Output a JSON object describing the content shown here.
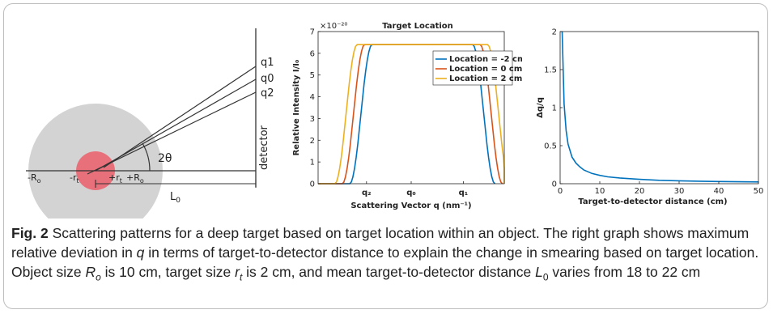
{
  "diagram": {
    "labels": {
      "q1": "q1",
      "q0": "q0",
      "q2": "q2",
      "angle": "2θ",
      "detector": "detector",
      "neg_R": "-R",
      "neg_R_sub": "o",
      "neg_r": "-r",
      "neg_r_sub": "t",
      "pos_r": "+r",
      "pos_r_sub": "t",
      "pos_R": "+R",
      "pos_R_sub": "o",
      "L": "L",
      "L_sub": "0"
    },
    "colors": {
      "object": "#d3d3d3",
      "target": "#e8707a"
    }
  },
  "chart_data": [
    {
      "type": "line",
      "title": "Target Location",
      "xlabel": "Scattering Vector q (nm⁻¹)",
      "ylabel": "Relative Intensity I/I₀",
      "y_multiplier": "×10⁻²⁰",
      "x_tick_labels": [
        "q₂",
        "q₀",
        "q₁"
      ],
      "y_ticks": [
        0,
        1,
        2,
        3,
        4,
        5,
        6,
        7
      ],
      "ylim": [
        0,
        7
      ],
      "xlim": [
        0,
        10
      ],
      "legend_position": "top-right",
      "grid": false,
      "series": [
        {
          "name": "Location = -2 cm",
          "color": "#0072bd",
          "rise": [
            1.7,
            2.9
          ],
          "fall": [
            8.3,
            9.5
          ],
          "plateau": 6.4
        },
        {
          "name": "Location = 0 cm",
          "color": "#d95319",
          "rise": [
            1.3,
            2.5
          ],
          "fall": [
            8.7,
            9.9
          ],
          "plateau": 6.4
        },
        {
          "name": "Location = 2 cm",
          "color": "#edb120",
          "rise": [
            0.9,
            2.1
          ],
          "fall": [
            9.1,
            10.3
          ],
          "plateau": 6.4
        }
      ]
    },
    {
      "type": "line",
      "title": "",
      "xlabel": "Target-to-detector distance (cm)",
      "ylabel": "Δq/q",
      "xlim": [
        0,
        50
      ],
      "ylim": [
        0,
        2
      ],
      "x_ticks": [
        0,
        10,
        20,
        30,
        40,
        50
      ],
      "y_ticks": [
        0,
        0.5,
        1,
        1.5,
        2
      ],
      "grid": false,
      "series": [
        {
          "color": "#0072bd",
          "x": [
            0.5,
            1,
            1.5,
            2,
            3,
            4,
            5,
            6,
            8,
            10,
            12,
            15,
            20,
            25,
            30,
            35,
            40,
            45,
            50
          ],
          "y": [
            2,
            1.05,
            0.7,
            0.52,
            0.35,
            0.27,
            0.22,
            0.18,
            0.135,
            0.11,
            0.09,
            0.075,
            0.057,
            0.045,
            0.038,
            0.033,
            0.029,
            0.026,
            0.023
          ]
        }
      ]
    }
  ],
  "caption": {
    "lead": "Fig. 2",
    "p1": "  Scattering patterns for a deep target based on target location within an object. The right graph shows maximum relative deviation in ",
    "q": "q",
    "p2": " in terms of target-to-detector distance to explain the change in smearing based on target location. Object size ",
    "Ro": "R",
    "Ro_sub": "o",
    "p3": " is 10 cm, target size ",
    "rt": "r",
    "rt_sub": "t",
    "p4": " is 2 cm, and mean target-to-detector distance ",
    "L0": "L",
    "L0_sub": "0",
    "p5": " varies from 18 to 22 cm"
  }
}
